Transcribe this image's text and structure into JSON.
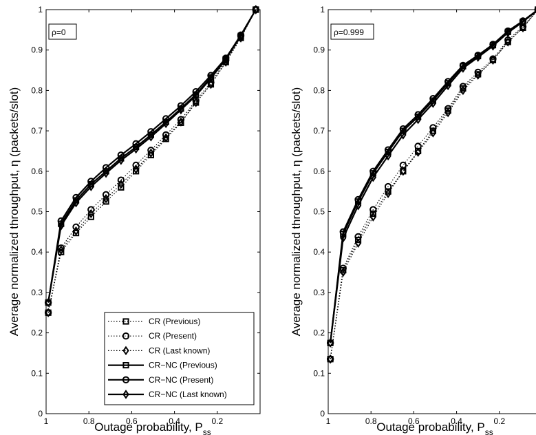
{
  "chart_data": [
    {
      "type": "line",
      "annotation": "ρ=0",
      "xlabel": "Outage probability, P",
      "xlabel_sub": "ss",
      "ylabel": "Average normalized throughput, η (packets/slot)",
      "x_reversed": true,
      "xlim": [
        1,
        0
      ],
      "ylim": [
        0,
        1
      ],
      "xticks": [
        1,
        0.8,
        0.6,
        0.4,
        0.2
      ],
      "xtick_labels": [
        "1",
        "0.8",
        "0.6",
        "0.4",
        "0.2"
      ],
      "yticks": [
        0,
        0.1,
        0.2,
        0.3,
        0.4,
        0.5,
        0.6,
        0.7,
        0.8,
        0.9,
        1
      ],
      "ytick_labels": [
        "0",
        "0.1",
        "0.2",
        "0.3",
        "0.4",
        "0.5",
        "0.6",
        "0.7",
        "0.8",
        "0.9",
        "1"
      ],
      "legend_position": "bottom-right",
      "x": [
        0.99,
        0.93,
        0.86,
        0.79,
        0.72,
        0.65,
        0.58,
        0.51,
        0.44,
        0.37,
        0.3,
        0.23,
        0.16,
        0.09,
        0.02
      ],
      "series": [
        {
          "name": "CR (Previous)",
          "style": "dotted",
          "marker": "square",
          "values": [
            0.25,
            0.4,
            0.447,
            0.487,
            0.525,
            0.56,
            0.6,
            0.64,
            0.68,
            0.72,
            0.77,
            0.815,
            0.87,
            0.93,
            1.0
          ]
        },
        {
          "name": "CR (Present)",
          "style": "dotted",
          "marker": "circle",
          "values": [
            0.25,
            0.41,
            0.462,
            0.505,
            0.542,
            0.578,
            0.615,
            0.652,
            0.69,
            0.728,
            0.775,
            0.82,
            0.875,
            0.935,
            1.0
          ]
        },
        {
          "name": "CR (Last known)",
          "style": "dotted",
          "marker": "diamond",
          "values": [
            0.25,
            0.405,
            0.452,
            0.495,
            0.532,
            0.568,
            0.605,
            0.645,
            0.683,
            0.722,
            0.77,
            0.815,
            0.87,
            0.93,
            1.0
          ]
        },
        {
          "name": "CR−NC (Previous)",
          "style": "solid",
          "marker": "square",
          "values": [
            0.275,
            0.47,
            0.528,
            0.568,
            0.6,
            0.632,
            0.66,
            0.69,
            0.722,
            0.755,
            0.79,
            0.832,
            0.878,
            0.935,
            1.0
          ]
        },
        {
          "name": "CR−NC (Present)",
          "style": "solid",
          "marker": "circle",
          "values": [
            0.275,
            0.477,
            0.535,
            0.575,
            0.609,
            0.64,
            0.668,
            0.698,
            0.73,
            0.762,
            0.797,
            0.837,
            0.88,
            0.937,
            1.0
          ]
        },
        {
          "name": "CR−NC (Last known)",
          "style": "solid",
          "marker": "diamond",
          "values": [
            0.275,
            0.465,
            0.522,
            0.562,
            0.595,
            0.627,
            0.655,
            0.685,
            0.718,
            0.752,
            0.787,
            0.83,
            0.877,
            0.935,
            1.0
          ]
        }
      ]
    },
    {
      "type": "line",
      "annotation": "ρ=0.999",
      "xlabel": "Outage probability, P",
      "xlabel_sub": "ss",
      "ylabel": "Average normalized throughput, η (packets/slot)",
      "x_reversed": true,
      "xlim": [
        1,
        0
      ],
      "ylim": [
        0,
        1
      ],
      "xticks": [
        1,
        0.8,
        0.6,
        0.4,
        0.2
      ],
      "xtick_labels": [
        "1",
        "0.8",
        "0.6",
        "0.4",
        "0.2"
      ],
      "yticks": [
        0,
        0.1,
        0.2,
        0.3,
        0.4,
        0.5,
        0.6,
        0.7,
        0.8,
        0.9,
        1
      ],
      "ytick_labels": [
        "0",
        "0.1",
        "0.2",
        "0.3",
        "0.4",
        "0.5",
        "0.6",
        "0.7",
        "0.8",
        "0.9",
        "1"
      ],
      "x": [
        0.99,
        0.93,
        0.86,
        0.79,
        0.72,
        0.65,
        0.58,
        0.51,
        0.44,
        0.37,
        0.3,
        0.23,
        0.16,
        0.09,
        0.02
      ],
      "series": [
        {
          "name": "CR (Previous)",
          "style": "dotted",
          "marker": "square",
          "values": [
            0.135,
            0.355,
            0.43,
            0.495,
            0.55,
            0.6,
            0.65,
            0.7,
            0.75,
            0.805,
            0.84,
            0.875,
            0.92,
            0.955,
            1.0
          ]
        },
        {
          "name": "CR (Present)",
          "style": "dotted",
          "marker": "circle",
          "values": [
            0.135,
            0.36,
            0.438,
            0.505,
            0.562,
            0.615,
            0.662,
            0.708,
            0.755,
            0.81,
            0.845,
            0.878,
            0.925,
            0.958,
            1.0
          ]
        },
        {
          "name": "CR (Last known)",
          "style": "dotted",
          "marker": "diamond",
          "values": [
            0.135,
            0.35,
            0.422,
            0.487,
            0.545,
            0.6,
            0.647,
            0.695,
            0.745,
            0.8,
            0.838,
            0.875,
            0.92,
            0.955,
            1.0
          ]
        },
        {
          "name": "CR−NC (Previous)",
          "style": "solid",
          "marker": "square",
          "values": [
            0.175,
            0.445,
            0.525,
            0.595,
            0.648,
            0.7,
            0.735,
            0.775,
            0.818,
            0.86,
            0.885,
            0.912,
            0.945,
            0.97,
            1.0
          ]
        },
        {
          "name": "CR−NC (Present)",
          "style": "solid",
          "marker": "circle",
          "values": [
            0.175,
            0.45,
            0.53,
            0.6,
            0.653,
            0.705,
            0.74,
            0.78,
            0.822,
            0.862,
            0.887,
            0.914,
            0.947,
            0.972,
            1.0
          ]
        },
        {
          "name": "CR−NC (Last known)",
          "style": "solid",
          "marker": "diamond",
          "values": [
            0.175,
            0.435,
            0.515,
            0.585,
            0.638,
            0.69,
            0.728,
            0.768,
            0.812,
            0.855,
            0.882,
            0.91,
            0.943,
            0.97,
            1.0
          ]
        }
      ]
    }
  ]
}
